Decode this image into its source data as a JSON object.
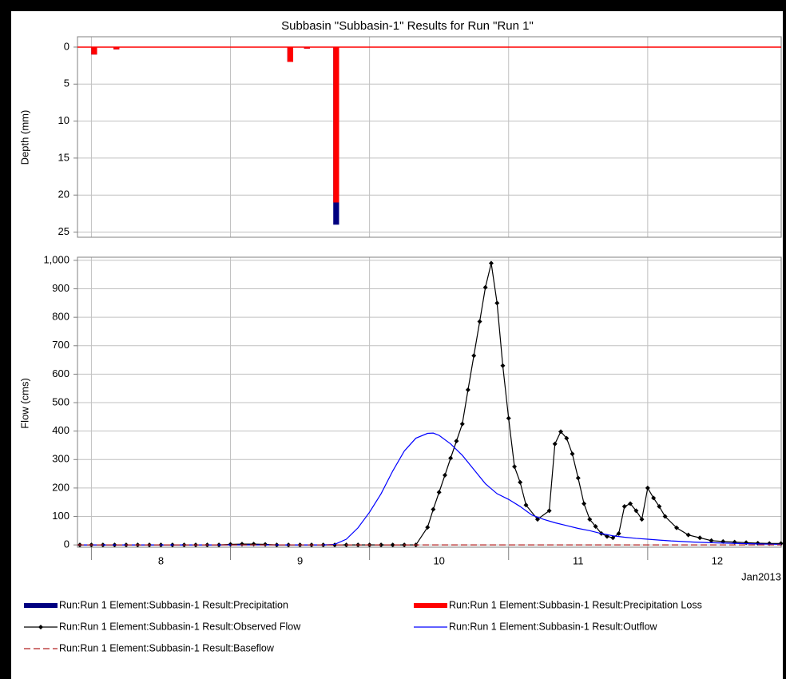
{
  "chart_data": [
    {
      "type": "bar",
      "title": "Subbasin \"Subbasin-1\" Results for Run \"Run 1\"",
      "y_label": "Depth (mm)",
      "inverted": true,
      "xlim": [
        7.9,
        12.96
      ],
      "ylim": [
        -1.4,
        25.7
      ],
      "yticks": [
        0,
        5,
        10,
        15,
        20,
        25
      ],
      "grid": true,
      "series": [
        {
          "name": "Run:Run 1 Element:Subbasin-1 Result:Precipitation",
          "color": "#000080",
          "x": [
            8.02,
            8.18,
            9.43,
            9.55,
            9.76
          ],
          "values": [
            1,
            0.3,
            2,
            0.2,
            24
          ]
        },
        {
          "name": "Run:Run 1 Element:Subbasin-1 Result:Precipitation Loss",
          "color": "#ff0000",
          "x": [
            8.02,
            8.18,
            9.43,
            9.55,
            9.76
          ],
          "values": [
            1,
            0.3,
            2,
            0.2,
            21
          ]
        }
      ]
    },
    {
      "type": "line",
      "y_label": "Flow (cms)",
      "x_label": "Jan2013",
      "xlim": [
        7.9,
        12.96
      ],
      "xticks": [
        8,
        9,
        10,
        11,
        12
      ],
      "ylim": [
        -8,
        1011
      ],
      "yticks": [
        0,
        100,
        200,
        300,
        400,
        500,
        600,
        700,
        800,
        900,
        {
          "value": 1000,
          "label": "1,000"
        }
      ],
      "grid": true,
      "series": [
        {
          "name": "Run:Run 1 Element:Subbasin-1 Result:Observed Flow",
          "color": "#000000",
          "marker": "diamond",
          "x": [
            7.917,
            8.0,
            8.083,
            8.167,
            8.25,
            8.333,
            8.417,
            8.5,
            8.583,
            8.667,
            8.75,
            8.833,
            8.917,
            9.0,
            9.083,
            9.167,
            9.25,
            9.333,
            9.417,
            9.5,
            9.583,
            9.667,
            9.75,
            9.833,
            9.917,
            10.0,
            10.083,
            10.167,
            10.25,
            10.333,
            10.417,
            10.458,
            10.5,
            10.542,
            10.583,
            10.625,
            10.667,
            10.708,
            10.75,
            10.792,
            10.833,
            10.875,
            10.917,
            10.958,
            11.0,
            11.042,
            11.083,
            11.125,
            11.208,
            11.292,
            11.333,
            11.375,
            11.417,
            11.458,
            11.5,
            11.542,
            11.583,
            11.625,
            11.667,
            11.708,
            11.75,
            11.792,
            11.833,
            11.875,
            11.917,
            11.958,
            12.0,
            12.042,
            12.083,
            12.125,
            12.208,
            12.292,
            12.375,
            12.458,
            12.542,
            12.625,
            12.708,
            12.792,
            12.875,
            12.958
          ],
          "values": [
            0,
            0,
            0,
            0,
            0,
            0,
            0,
            0,
            0,
            0,
            0,
            0,
            0,
            2,
            3,
            3,
            2,
            0,
            0,
            0,
            0,
            0,
            0,
            0,
            0,
            0,
            0,
            0,
            0,
            0,
            62,
            125,
            185,
            245,
            305,
            365,
            425,
            545,
            665,
            785,
            905,
            990,
            850,
            630,
            445,
            275,
            220,
            140,
            90,
            120,
            355,
            398,
            375,
            320,
            235,
            145,
            90,
            65,
            40,
            30,
            25,
            40,
            135,
            145,
            120,
            90,
            200,
            165,
            135,
            100,
            60,
            35,
            25,
            15,
            12,
            10,
            8,
            6,
            5,
            5
          ]
        },
        {
          "name": "Run:Run 1 Element:Subbasin-1 Result:Outflow",
          "color": "#0000ff",
          "x": [
            7.9,
            9.5,
            9.667,
            9.75,
            9.833,
            9.917,
            10.0,
            10.083,
            10.167,
            10.25,
            10.333,
            10.417,
            10.458,
            10.5,
            10.583,
            10.667,
            10.75,
            10.833,
            10.917,
            11.0,
            11.083,
            11.167,
            11.25,
            11.333,
            11.417,
            11.5,
            11.583,
            11.667,
            11.75,
            11.833,
            11.917,
            12.0,
            12.083,
            12.167,
            12.25,
            12.333,
            12.5,
            12.667,
            12.833,
            12.96
          ],
          "values": [
            0,
            0,
            0,
            2,
            20,
            60,
            115,
            180,
            260,
            330,
            375,
            392,
            393,
            385,
            355,
            315,
            265,
            215,
            180,
            160,
            135,
            105,
            90,
            78,
            68,
            58,
            50,
            40,
            32,
            27,
            23,
            20,
            17,
            14,
            12,
            10,
            7,
            5,
            3,
            2
          ]
        },
        {
          "name": "Run:Run 1 Element:Subbasin-1 Result:Baseflow",
          "color": "#b22222",
          "dash": true,
          "x": [
            7.9,
            12.96
          ],
          "values": [
            0,
            0
          ]
        }
      ]
    }
  ]
}
